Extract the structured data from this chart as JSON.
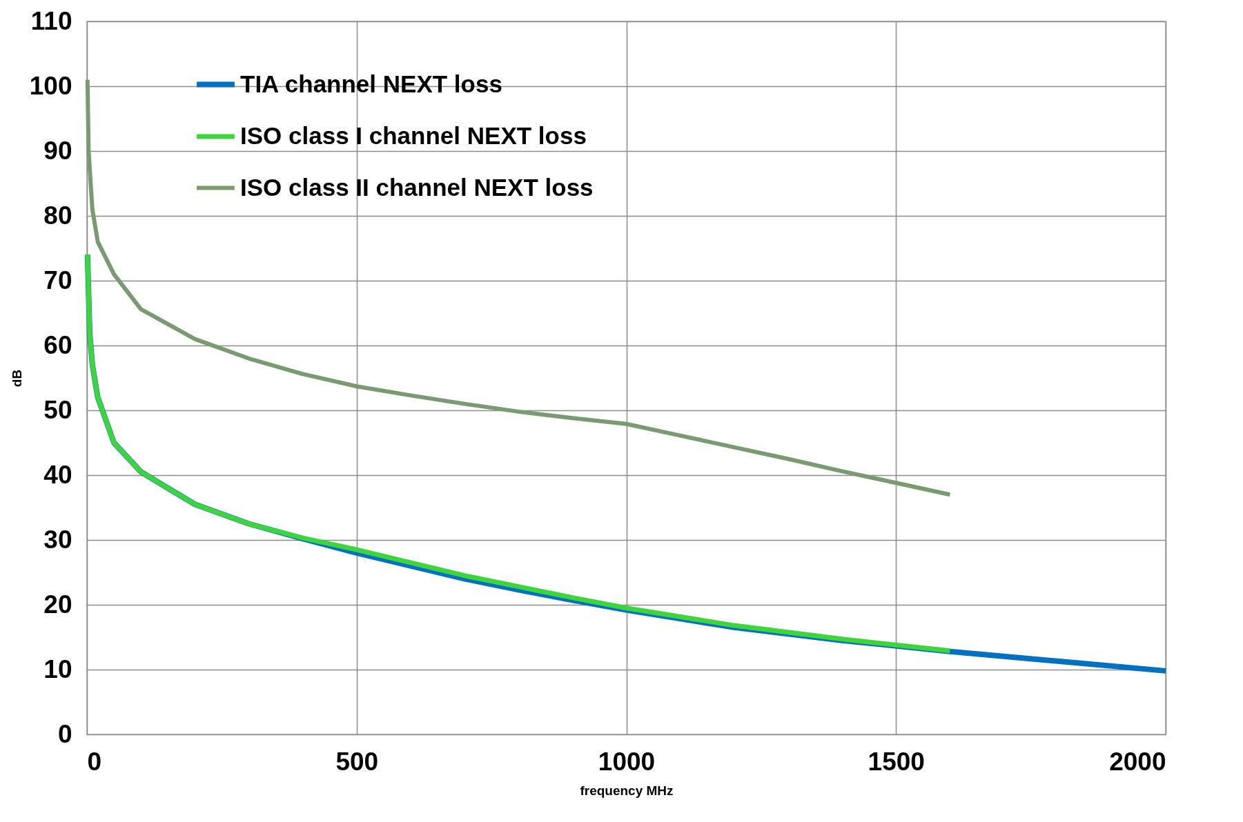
{
  "chart_data": {
    "type": "line",
    "xlabel": "frequency MHz",
    "ylabel": "dB",
    "xlim": [
      0,
      2000
    ],
    "xticks": [
      0,
      500,
      1000,
      1500,
      2000
    ],
    "ylim": [
      0,
      110
    ],
    "yticks": [
      0,
      10,
      20,
      30,
      40,
      50,
      60,
      70,
      80,
      90,
      100,
      110
    ],
    "grid": true,
    "legend": "top left",
    "marker": "none",
    "line_style": "solid",
    "series": [
      {
        "name": "TIA channel NEXT loss",
        "color": "#0070c0",
        "x": [
          1,
          5,
          10,
          20,
          50,
          100,
          200,
          300,
          400,
          500,
          600,
          700,
          800,
          900,
          1000,
          1200,
          1400,
          1600,
          1800,
          2000
        ],
        "values": [
          74,
          62,
          57,
          52,
          45,
          40.5,
          35.5,
          32.5,
          30.2,
          28,
          26,
          24,
          22.3,
          20.7,
          19.2,
          16.5,
          14.5,
          12.8,
          11.3,
          9.8
        ]
      },
      {
        "name": "ISO class I channel NEXT loss",
        "color": "#3ed43e",
        "x": [
          1,
          5,
          10,
          20,
          50,
          100,
          200,
          300,
          400,
          500,
          600,
          700,
          800,
          900,
          1000,
          1200,
          1400,
          1600
        ],
        "values": [
          74,
          62,
          57,
          52,
          45,
          40.5,
          35.5,
          32.5,
          30.3,
          28.5,
          26.5,
          24.5,
          22.8,
          21.1,
          19.5,
          16.8,
          14.7,
          12.9
        ]
      },
      {
        "name": "ISO class II channel NEXT loss",
        "color": "#7a9a72",
        "x": [
          1,
          3,
          10,
          20,
          50,
          100,
          200,
          300,
          400,
          500,
          600,
          700,
          800,
          900,
          1000,
          1100,
          1200,
          1300,
          1400,
          1500,
          1600
        ],
        "values": [
          101,
          90,
          81,
          76,
          71,
          65.6,
          61,
          58,
          55.6,
          53.7,
          52.3,
          51,
          49.8,
          48.8,
          47.9,
          46.1,
          44.3,
          42.5,
          40.6,
          38.8,
          37
        ]
      }
    ]
  }
}
